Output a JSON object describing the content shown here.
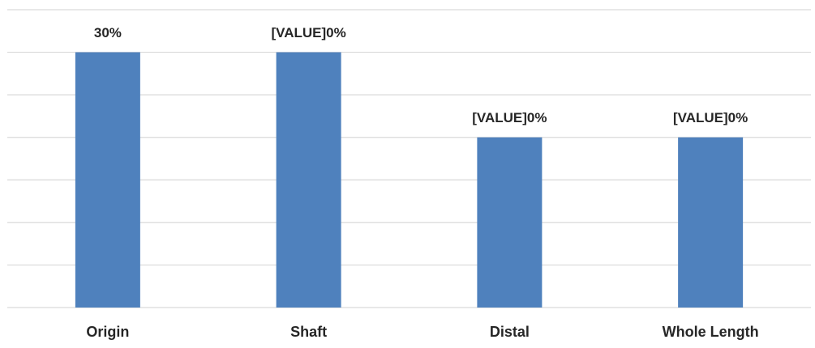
{
  "chart_data": {
    "type": "bar",
    "categories": [
      "Origin",
      "Shaft",
      "Distal",
      "Whole Length"
    ],
    "values": [
      30,
      30,
      20,
      20
    ],
    "value_labels": [
      "30%",
      "[VALUE]0%",
      "[VALUE]0%",
      "[VALUE]0%"
    ],
    "color": "#4f81bd",
    "ylim": [
      0,
      35
    ],
    "yticks": [
      0,
      5,
      10,
      15,
      20,
      25,
      30,
      35
    ],
    "grid": true
  }
}
